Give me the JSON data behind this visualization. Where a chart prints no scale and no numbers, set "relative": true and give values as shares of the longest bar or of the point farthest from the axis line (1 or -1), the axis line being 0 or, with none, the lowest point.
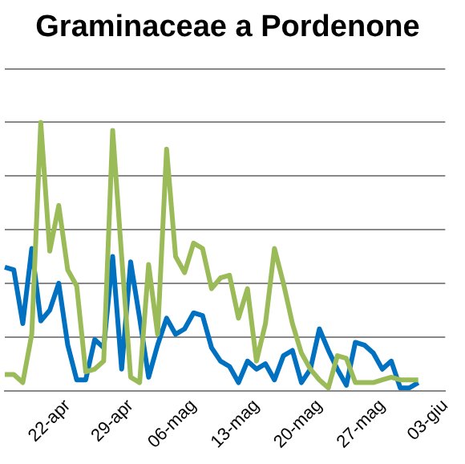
{
  "chart_data": {
    "type": "line",
    "title": "Graminaceae a Pordenone",
    "relative": true,
    "grid": "y",
    "legend": false,
    "marker": "none",
    "categories": [
      null,
      null,
      null,
      null,
      null,
      null,
      null,
      "22-apr",
      null,
      null,
      null,
      null,
      null,
      null,
      "29-apr",
      null,
      null,
      null,
      null,
      null,
      null,
      "06-mag",
      null,
      null,
      null,
      null,
      null,
      null,
      "13-mag",
      null,
      null,
      null,
      null,
      null,
      null,
      "20-mag",
      null,
      null,
      null,
      null,
      null,
      null,
      "27-mag",
      null,
      null,
      null,
      null,
      null,
      null,
      "03-giu"
    ],
    "series": [
      {
        "color": "#9bbb59",
        "values": [
          0.06,
          0.06,
          0.03,
          0.21,
          1,
          0.52,
          0.69,
          0.45,
          0.39,
          0.07,
          0.08,
          0.11,
          0.97,
          0.5,
          0.05,
          0.03,
          0.47,
          0.21,
          0.9,
          0.5,
          0.44,
          0.55,
          0.53,
          0.38,
          0.42,
          0.43,
          0.27,
          0.38,
          0.11,
          0.25,
          0.53,
          0.4,
          0.25,
          0.14,
          0.08,
          0.04,
          0.01,
          0.13,
          0.12,
          0.03,
          0.03,
          0.03,
          0.04,
          0.05,
          0.04,
          0.04,
          0.04,
          null,
          null,
          null
        ]
      },
      {
        "color": "#0070c0",
        "values": [
          0.46,
          0.45,
          0.25,
          0.53,
          0.26,
          0.3,
          0.4,
          0.17,
          0.04,
          0.04,
          0.19,
          0.16,
          0.5,
          0.08,
          0.48,
          0.27,
          0.05,
          0.17,
          0.27,
          0.21,
          0.23,
          0.29,
          0.28,
          0.16,
          0.11,
          0.09,
          0.03,
          0.11,
          0.08,
          0.1,
          0.04,
          0.13,
          0.15,
          0.03,
          0.08,
          0.23,
          0.15,
          0.08,
          0.02,
          0.18,
          0.17,
          0.14,
          0.08,
          0.11,
          0.01,
          0.01,
          0.03,
          null,
          null,
          null
        ]
      }
    ]
  }
}
